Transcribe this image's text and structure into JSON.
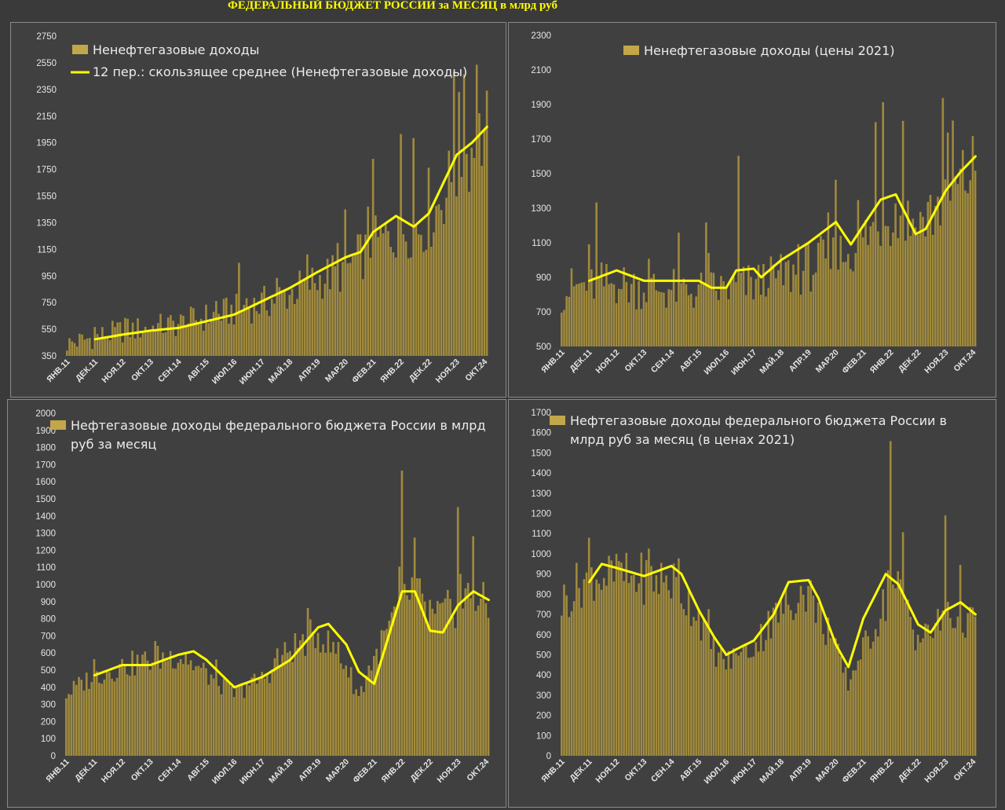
{
  "page_title": "ФЕДЕРАЛЬНЫЙ БЮДЖЕТ РОССИИ за МЕСЯЦ в млрд руб",
  "colors": {
    "bar": "#a08a3c",
    "bar_top": "#c2a64a",
    "line": "#ffff00",
    "text": "#e6e6e6",
    "background": "#404040"
  },
  "x_ticks": [
    "ЯНВ.11",
    "ДЕК.11",
    "НОЯ.12",
    "ОКТ.13",
    "СЕН.14",
    "АВГ.15",
    "ИЮЛ.16",
    "ИЮН.17",
    "МАЙ.18",
    "АПР.19",
    "МАР.20",
    "ФЕВ.21",
    "ЯНВ.22",
    "ДЕК.22",
    "НОЯ.23",
    "ОКТ.24"
  ],
  "chart_data": [
    {
      "type": "bar",
      "legend": [
        "Ненефтегазовые доходы",
        "12 пер.: скользящее среднее (Ненефтегазовые доходы)"
      ],
      "ylim": [
        350,
        2750
      ],
      "y_ticks": [
        "2750",
        "2550",
        "2350",
        "2150",
        "1950",
        "1750",
        "1550",
        "1350",
        "1150",
        "950",
        "750",
        "550",
        "350"
      ],
      "n_months": 167,
      "anchors_x": [
        0,
        11,
        22,
        33,
        44,
        55,
        66,
        77,
        88,
        99,
        110,
        121,
        132,
        143,
        154,
        160,
        166
      ],
      "bar_base": [
        440,
        490,
        540,
        560,
        590,
        640,
        690,
        740,
        820,
        920,
        1000,
        1180,
        1300,
        1350,
        1750,
        1900,
        2050
      ],
      "ma_anchors_x": [
        11,
        22,
        33,
        44,
        55,
        66,
        77,
        88,
        99,
        110,
        116,
        121,
        130,
        137,
        143,
        154,
        160,
        166
      ],
      "ma_values": [
        475,
        510,
        540,
        560,
        610,
        660,
        760,
        860,
        980,
        1090,
        1130,
        1280,
        1400,
        1320,
        1420,
        1860,
        1950,
        2070
      ]
    },
    {
      "type": "bar",
      "legend": [
        "Ненефтегазовые доходы (цены 2021)"
      ],
      "ylim": [
        500,
        2300
      ],
      "y_ticks": [
        "2300",
        "2100",
        "1900",
        "1700",
        "1500",
        "1300",
        "1100",
        "900",
        "700",
        "500"
      ],
      "n_months": 167,
      "anchors_x": [
        0,
        11,
        22,
        33,
        44,
        55,
        66,
        77,
        88,
        99,
        110,
        121,
        128,
        135,
        143,
        154,
        160,
        166
      ],
      "bar_base": [
        820,
        860,
        860,
        840,
        830,
        820,
        830,
        860,
        900,
        960,
        1010,
        1120,
        1230,
        1260,
        1200,
        1350,
        1430,
        1550
      ],
      "ma_anchors_x": [
        11,
        22,
        33,
        44,
        55,
        60,
        66,
        70,
        77,
        80,
        88,
        99,
        110,
        116,
        121,
        128,
        134,
        142,
        146,
        154,
        160,
        166
      ],
      "ma_values": [
        880,
        940,
        880,
        880,
        880,
        840,
        840,
        940,
        950,
        900,
        1000,
        1100,
        1220,
        1090,
        1200,
        1350,
        1380,
        1150,
        1180,
        1400,
        1510,
        1600
      ]
    },
    {
      "type": "bar",
      "legend": [
        "Нефтегазовые доходы федерального бюджета России в млрд",
        "руб за месяц"
      ],
      "ylim": [
        0,
        2000
      ],
      "y_ticks": [
        "2000",
        "1900",
        "1800",
        "1700",
        "1600",
        "1500",
        "1400",
        "1300",
        "1200",
        "1100",
        "1000",
        "900",
        "800",
        "700",
        "600",
        "500",
        "400",
        "300",
        "200",
        "100",
        "0"
      ],
      "n_months": 167,
      "anchors_x": [
        0,
        11,
        22,
        33,
        44,
        55,
        66,
        77,
        88,
        99,
        110,
        115,
        121,
        132,
        137,
        143,
        154,
        160,
        166
      ],
      "bar_base": [
        360,
        470,
        520,
        560,
        590,
        480,
        360,
        450,
        620,
        720,
        530,
        350,
        560,
        900,
        980,
        780,
        880,
        950,
        850
      ],
      "ma_anchors_x": [
        11,
        22,
        33,
        44,
        50,
        55,
        66,
        77,
        88,
        99,
        103,
        110,
        115,
        121,
        132,
        137,
        143,
        148,
        154,
        160,
        166
      ],
      "ma_values": [
        470,
        530,
        530,
        590,
        610,
        560,
        400,
        460,
        560,
        750,
        770,
        650,
        490,
        420,
        960,
        960,
        730,
        720,
        880,
        960,
        910
      ]
    },
    {
      "type": "bar",
      "legend": [
        "Нефтегазовые доходы федерального бюджета России в",
        "млрд руб за месяц (в ценах 2021)"
      ],
      "ylim": [
        0,
        1700
      ],
      "y_ticks": [
        "1700",
        "1600",
        "1500",
        "1400",
        "1300",
        "1200",
        "1100",
        "1000",
        "900",
        "800",
        "700",
        "600",
        "500",
        "400",
        "300",
        "200",
        "100",
        "0"
      ],
      "n_months": 167,
      "anchors_x": [
        0,
        11,
        22,
        33,
        44,
        55,
        60,
        66,
        77,
        88,
        99,
        110,
        115,
        121,
        132,
        137,
        143,
        154,
        160,
        166
      ],
      "bar_base": [
        760,
        900,
        880,
        880,
        870,
        700,
        540,
        460,
        540,
        720,
        820,
        520,
        360,
        520,
        820,
        820,
        560,
        680,
        700,
        640
      ],
      "ma_anchors_x": [
        11,
        16,
        22,
        33,
        44,
        48,
        55,
        61,
        66,
        72,
        77,
        85,
        91,
        99,
        103,
        110,
        115,
        121,
        130,
        135,
        143,
        148,
        154,
        160,
        166
      ],
      "ma_values": [
        860,
        950,
        930,
        890,
        940,
        900,
        720,
        590,
        500,
        540,
        570,
        700,
        860,
        870,
        780,
        550,
        440,
        680,
        900,
        850,
        650,
        610,
        720,
        760,
        700
      ]
    }
  ]
}
